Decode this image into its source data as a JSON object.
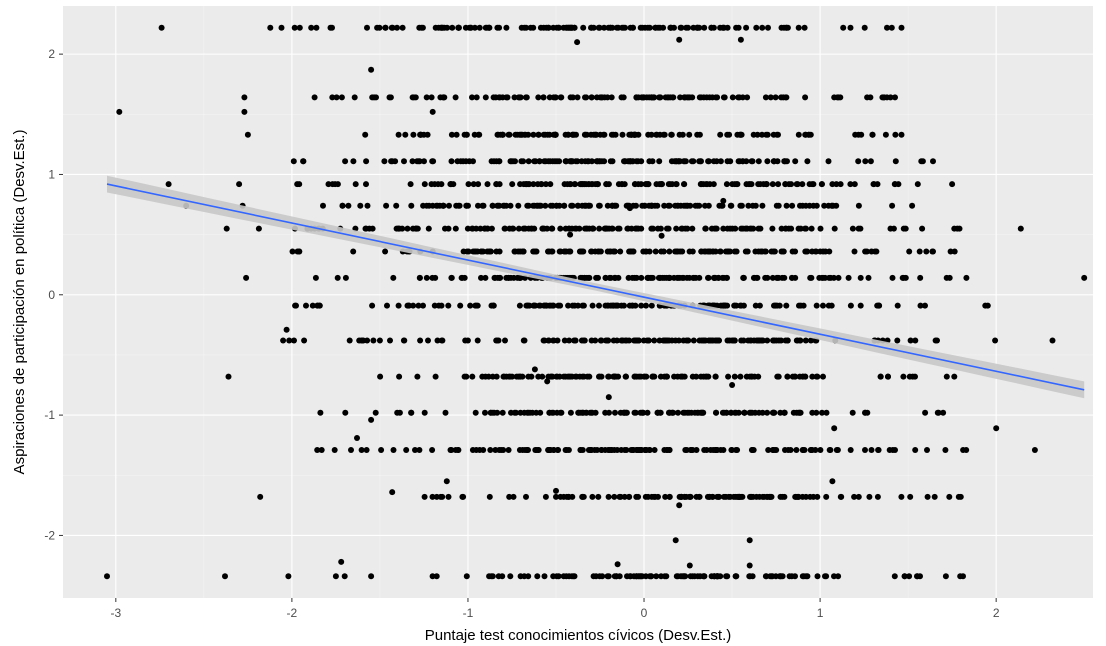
{
  "chart_data": {
    "type": "scatter",
    "title": "",
    "xlabel": "Puntaje test conocimientos cívicos (Desv.Est.)",
    "ylabel": "Aspiraciones de participación en política (Desv.Est.)",
    "xlim": [
      -3.3,
      2.55
    ],
    "ylim": [
      -2.52,
      2.4
    ],
    "x_ticks": [
      -3,
      -2,
      -1,
      0,
      1,
      2
    ],
    "y_ticks": [
      -2,
      -1,
      0,
      1,
      2
    ],
    "x_tick_labels": [
      "-3",
      "-2",
      "-1",
      "0",
      "1",
      "2"
    ],
    "y_tick_labels": [
      "-2",
      "-1",
      "0",
      "1",
      "2"
    ],
    "grid": true,
    "legend": "none",
    "y_levels": [
      2.22,
      1.64,
      1.52,
      1.33,
      1.11,
      0.92,
      0.74,
      0.55,
      0.36,
      0.14,
      -0.09,
      -0.38,
      -0.68,
      -0.98,
      -1.29,
      -1.68,
      -2.34
    ],
    "level_ranges": [
      {
        "y": 2.22,
        "xmin": -2.22,
        "xmax": 1.55
      },
      {
        "y": 1.64,
        "xmin": -1.9,
        "xmax": 1.5
      },
      {
        "y": 1.33,
        "xmin": -1.85,
        "xmax": 1.48
      },
      {
        "y": 1.11,
        "xmin": -2.0,
        "xmax": 1.68
      },
      {
        "y": 0.92,
        "xmin": -2.05,
        "xmax": 1.6
      },
      {
        "y": 0.74,
        "xmin": -2.05,
        "xmax": 1.62
      },
      {
        "y": 0.55,
        "xmin": -2.2,
        "xmax": 1.9
      },
      {
        "y": 0.36,
        "xmin": -2.0,
        "xmax": 1.98
      },
      {
        "y": 0.14,
        "xmin": -2.1,
        "xmax": 1.98
      },
      {
        "y": -0.09,
        "xmin": -2.0,
        "xmax": 2.02
      },
      {
        "y": -0.38,
        "xmin": -2.05,
        "xmax": 2.1
      },
      {
        "y": -0.68,
        "xmin": -1.6,
        "xmax": 1.8
      },
      {
        "y": -0.98,
        "xmin": -1.85,
        "xmax": 1.75
      },
      {
        "y": -1.29,
        "xmin": -1.95,
        "xmax": 1.92
      },
      {
        "y": -1.68,
        "xmin": -1.3,
        "xmax": 1.85
      },
      {
        "y": -2.34,
        "xmin": -1.25,
        "xmax": 1.82
      }
    ],
    "sparse_points": [
      [
        -3.05,
        -2.34
      ],
      [
        -2.38,
        -2.34
      ],
      [
        -2.02,
        -2.34
      ],
      [
        -1.75,
        -2.34
      ],
      [
        -1.55,
        -2.34
      ],
      [
        -1.72,
        -2.22
      ],
      [
        -1.7,
        -2.34
      ],
      [
        -2.98,
        1.52
      ],
      [
        -2.74,
        2.22
      ],
      [
        -2.7,
        0.92
      ],
      [
        -2.6,
        0.74
      ],
      [
        -2.37,
        0.55
      ],
      [
        -2.36,
        -0.68
      ],
      [
        -2.3,
        0.92
      ],
      [
        -2.28,
        0.74
      ],
      [
        -2.27,
        1.64
      ],
      [
        -2.27,
        1.52
      ],
      [
        -2.25,
        1.33
      ],
      [
        -2.26,
        0.14
      ],
      [
        -2.18,
        -1.68
      ],
      [
        -2.05,
        -0.38
      ],
      [
        -2.03,
        -0.29
      ],
      [
        -1.55,
        1.87
      ],
      [
        -1.2,
        1.52
      ],
      [
        -0.38,
        2.1
      ],
      [
        0.2,
        2.12
      ],
      [
        0.55,
        2.12
      ],
      [
        1.38,
        2.22
      ],
      [
        2.5,
        0.14
      ],
      [
        2.32,
        -0.38
      ],
      [
        2.22,
        -1.29
      ],
      [
        2.0,
        -1.11
      ],
      [
        2.14,
        0.55
      ],
      [
        1.75,
        0.92
      ],
      [
        -1.63,
        -1.19
      ],
      [
        -1.55,
        -1.04
      ],
      [
        -1.43,
        -1.64
      ],
      [
        -1.12,
        -1.55
      ],
      [
        -0.5,
        -1.63
      ],
      [
        0.2,
        -1.75
      ],
      [
        0.18,
        -2.04
      ],
      [
        0.6,
        -2.04
      ],
      [
        0.6,
        -2.25
      ],
      [
        -0.15,
        -2.24
      ],
      [
        1.08,
        -1.11
      ],
      [
        1.07,
        -1.55
      ],
      [
        0.26,
        -2.25
      ],
      [
        -0.08,
        0.72
      ],
      [
        -0.42,
        0.5
      ],
      [
        0.1,
        0.49
      ],
      [
        0.45,
        0.78
      ],
      [
        -0.55,
        -0.72
      ],
      [
        -0.62,
        -0.62
      ],
      [
        0.5,
        -0.75
      ],
      [
        -0.2,
        -0.85
      ]
    ],
    "regression_line": {
      "x": [
        -3.05,
        2.5
      ],
      "y": [
        0.92,
        -0.79
      ],
      "band": [
        0.07,
        0.03,
        0.07
      ]
    },
    "colors": {
      "panel": "#ebebeb",
      "grid_major": "#ffffff",
      "grid_minor": "#f4f4f4",
      "points": "#000000",
      "line": "#3366ff",
      "band": "#c8c8c8"
    }
  }
}
